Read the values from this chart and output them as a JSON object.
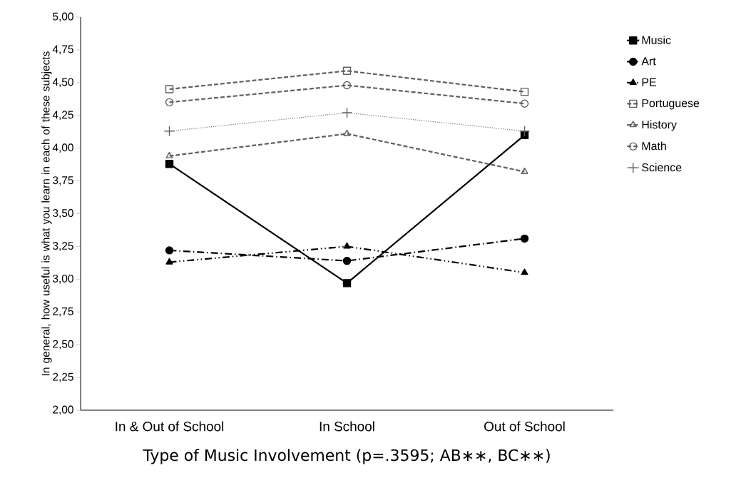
{
  "chart_data": {
    "type": "line",
    "xlabel": "Type of Music Involvement (p=.3595; AB∗∗, BC∗∗)",
    "ylabel": "In general, how useful is what you learn in each of these subjects",
    "categories": [
      "In & Out of School",
      "In School",
      "Out of School"
    ],
    "ylim": [
      2,
      5
    ],
    "yticks": [
      {
        "value": 2,
        "label": "2,00"
      },
      {
        "value": 2.25,
        "label": "2,25"
      },
      {
        "value": 2.5,
        "label": "2,50"
      },
      {
        "value": 2.75,
        "label": "2,75"
      },
      {
        "value": 3,
        "label": "3,00"
      },
      {
        "value": 3.25,
        "label": "3,25"
      },
      {
        "value": 3.5,
        "label": "3,50"
      },
      {
        "value": 3.75,
        "label": "3,75"
      },
      {
        "value": 4,
        "label": "4,00"
      },
      {
        "value": 4.25,
        "label": "4,25"
      },
      {
        "value": 4.5,
        "label": "4,50"
      },
      {
        "value": 4.75,
        "label": "4,75"
      },
      {
        "value": 5,
        "label": "5,00"
      }
    ],
    "grid": false,
    "legend": "right",
    "series": [
      {
        "name": "Music",
        "color": "#000000",
        "marker": "square",
        "line_style": "solid",
        "values": [
          3.88,
          2.97,
          4.1
        ]
      },
      {
        "name": "Art",
        "color": "#000000",
        "marker": "circle",
        "line_style": "dashdotted",
        "values": [
          3.22,
          3.14,
          3.31
        ]
      },
      {
        "name": "PE",
        "color": "#000000",
        "marker": "triangle",
        "line_style": "dashdotdotted",
        "values": [
          3.13,
          3.25,
          3.05
        ]
      },
      {
        "name": "Portuguese",
        "color": "#606060",
        "marker": "square",
        "line_style": "dashed",
        "values": [
          4.45,
          4.59,
          4.43
        ]
      },
      {
        "name": "History",
        "color": "#606060",
        "marker": "triangle",
        "line_style": "dashed",
        "values": [
          3.94,
          4.11,
          3.82
        ]
      },
      {
        "name": "Math",
        "color": "#606060",
        "marker": "circle",
        "line_style": "dashed",
        "values": [
          4.35,
          4.48,
          4.34
        ]
      },
      {
        "name": "Science",
        "color": "#606060",
        "marker": "cross",
        "line_style": "dotted",
        "values": [
          4.13,
          4.27,
          4.13
        ]
      }
    ]
  }
}
